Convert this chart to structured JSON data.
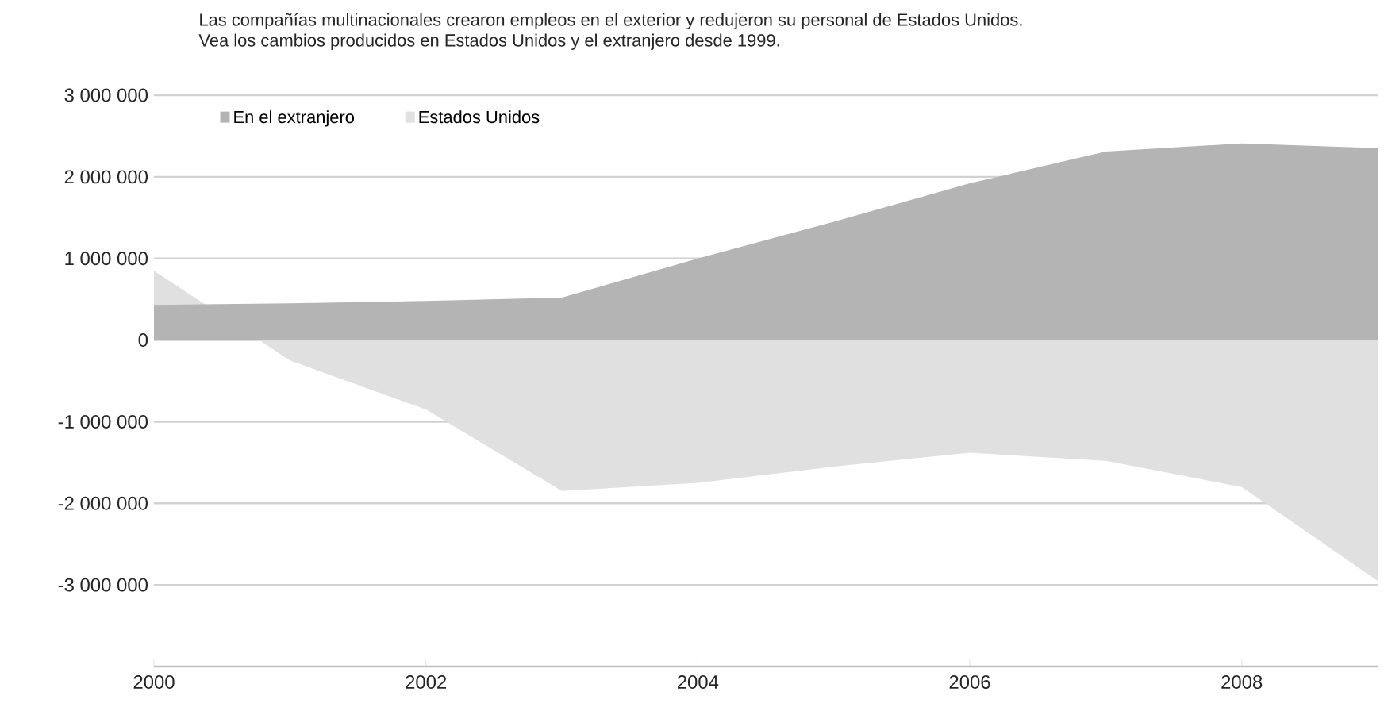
{
  "chart_data": {
    "type": "area",
    "title": "Las compañías multinacionales crearon empleos en el exterior y redujeron su personal de Estados Unidos.",
    "subtitle": "Vea los cambios producidos en Estados Unidos y el extranjero desde 1999.",
    "x": [
      2000,
      2001,
      2002,
      2003,
      2004,
      2005,
      2006,
      2007,
      2008,
      2009
    ],
    "series": [
      {
        "name": "En el extranjero",
        "color": "#b4b4b4",
        "values": [
          430000,
          450000,
          480000,
          520000,
          1000000,
          1450000,
          1920000,
          2310000,
          2410000,
          2350000
        ]
      },
      {
        "name": "Estados Unidos",
        "color": "#e0e0e0",
        "values": [
          850000,
          -250000,
          -850000,
          -1850000,
          -1750000,
          -1550000,
          -1380000,
          -1480000,
          -1800000,
          -2950000
        ]
      }
    ],
    "xlim": [
      2000,
      2009
    ],
    "ylim": [
      -4000000,
      3000000
    ],
    "xticks": [
      2000,
      2002,
      2004,
      2006,
      2008
    ],
    "yticks": [
      {
        "value": 3000000,
        "label": "3 000 000"
      },
      {
        "value": 2000000,
        "label": "2 000 000"
      },
      {
        "value": 1000000,
        "label": "1 000 000"
      },
      {
        "value": 0,
        "label": "0"
      },
      {
        "value": -1000000,
        "label": "-1 000 000"
      },
      {
        "value": -2000000,
        "label": "-2 000 000"
      },
      {
        "value": -3000000,
        "label": "-3 000 000"
      }
    ],
    "grid": "y",
    "legend": "top left"
  }
}
